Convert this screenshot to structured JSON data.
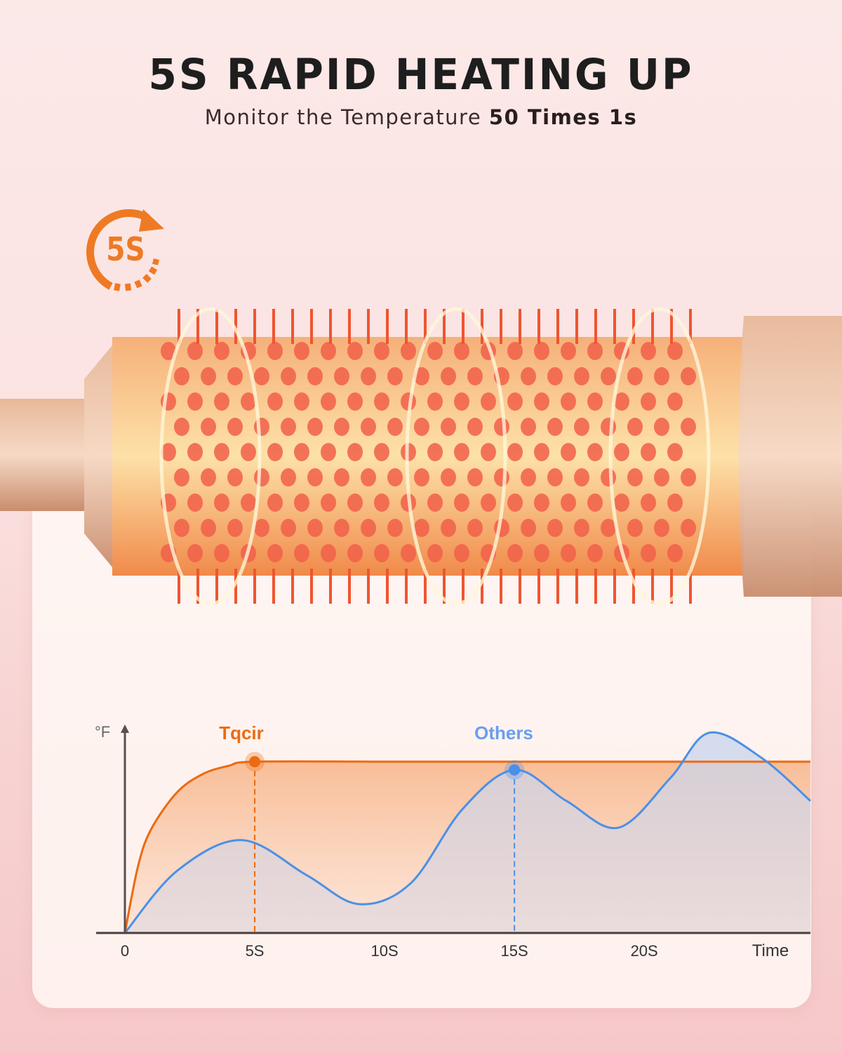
{
  "header": {
    "title": "5S RAPID HEATING UP",
    "subtitle_prefix": "Monitor the Temperature ",
    "subtitle_bold": "50 Times 1s"
  },
  "badge": {
    "text": "5S",
    "icon": "timer-arrow-icon",
    "color": "#ee7a24"
  },
  "product": {
    "description_icon": "round-brush-heating-icon"
  },
  "chart_data": {
    "type": "area",
    "ylabel": "°F",
    "xlabel": "Time",
    "x_ticks": [
      "0",
      "5S",
      "10S",
      "15S",
      "20S"
    ],
    "xlim": [
      0,
      26.4
    ],
    "ylim": [
      0,
      100
    ],
    "grid": false,
    "legend": "inline-top",
    "series": [
      {
        "name": "Tqcir",
        "color": "#ec6a12",
        "x": [
          0,
          0.5,
          1,
          2,
          3,
          4,
          5,
          10,
          15,
          20,
          26.4
        ],
        "y": [
          0,
          32,
          50,
          68,
          77,
          81,
          83,
          83,
          83,
          83,
          83
        ],
        "marker_x": 5
      },
      {
        "name": "Others",
        "color": "#4a90e8",
        "x": [
          0,
          2,
          4.5,
          7,
          9,
          11,
          13,
          15,
          17,
          19,
          21,
          22.5,
          24.5,
          26.4
        ],
        "y": [
          0,
          30,
          45,
          28,
          14,
          24,
          60,
          79,
          64,
          51,
          75,
          97,
          85,
          64
        ],
        "marker_x": 15
      }
    ]
  }
}
